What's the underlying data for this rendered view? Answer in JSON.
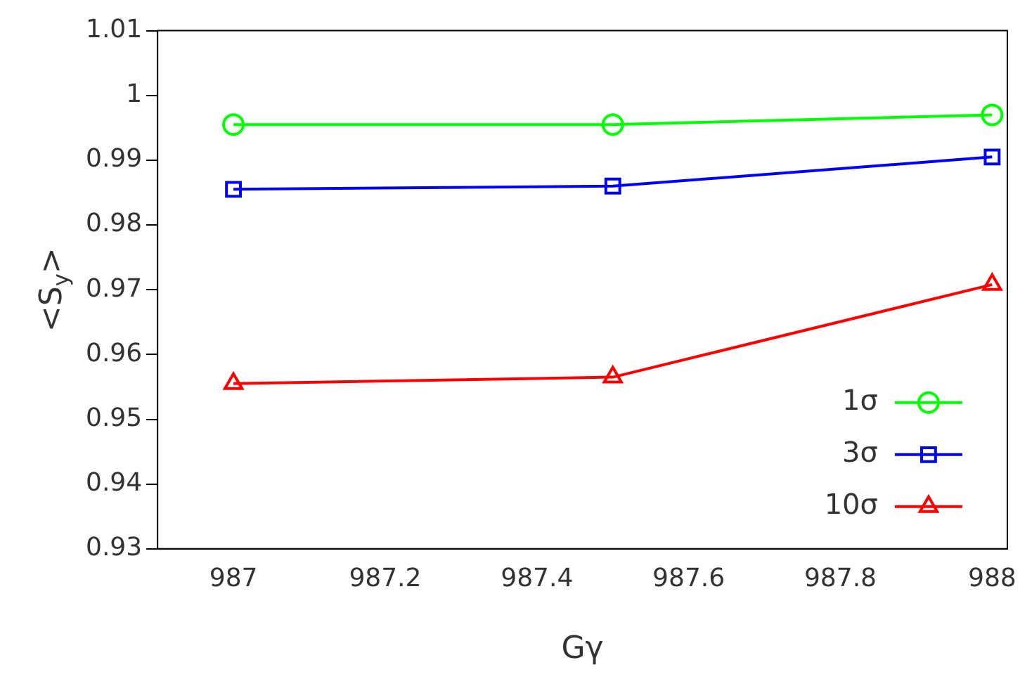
{
  "chart_data": {
    "type": "line",
    "xlabel": "Gγ",
    "ylabel": "<S$_{y}$>",
    "x": [
      987,
      987.5,
      988
    ],
    "xlim": [
      986.9,
      988.02
    ],
    "xticks": [
      987,
      987.2,
      987.4,
      987.6,
      987.8,
      988
    ],
    "ylim": [
      0.93,
      1.01
    ],
    "yticks": [
      0.93,
      0.94,
      0.95,
      0.96,
      0.97,
      0.98,
      0.99,
      1,
      1.01
    ],
    "grid": false,
    "legend": "bottom right",
    "line_style": "solid",
    "series": [
      {
        "name": "1σ",
        "color": "#00ff00",
        "marker": "circle",
        "values": [
          0.9955,
          0.9955,
          0.997
        ]
      },
      {
        "name": "3σ",
        "color": "#0000ff",
        "marker": "square",
        "values": [
          0.9855,
          0.986,
          0.9905
        ]
      },
      {
        "name": "10σ",
        "color": "#ff0000",
        "marker": "triangle",
        "values": [
          0.9555,
          0.9565,
          0.9708
        ]
      }
    ]
  }
}
